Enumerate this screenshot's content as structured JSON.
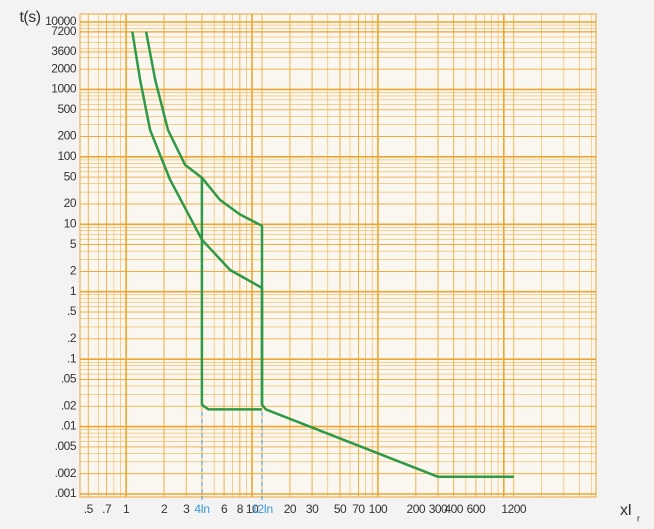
{
  "chart_data": {
    "type": "line",
    "y_label": "t(s)",
    "x_label": "xI",
    "x_label_sub": "r",
    "xlog": true,
    "ylog": true,
    "grid": true,
    "grid_color": "#eea630",
    "xlim": [
      0.43,
      5400
    ],
    "ylim": [
      0.001,
      10000
    ],
    "yticks": [
      10000,
      7200,
      3600,
      2000,
      1000,
      500,
      200,
      100,
      50,
      20,
      10,
      5,
      2,
      1,
      {
        "value": 0.5,
        "label": ".5"
      },
      {
        "value": 0.2,
        "label": ".2"
      },
      {
        "value": 0.1,
        "label": ".1"
      },
      {
        "value": 0.05,
        "label": ".05"
      },
      {
        "value": 0.02,
        "label": ".02"
      },
      {
        "value": 0.01,
        "label": ".01"
      },
      {
        "value": 0.005,
        "label": ".005"
      },
      {
        "value": 0.002,
        "label": ".002"
      },
      {
        "value": 0.001,
        "label": ".001"
      }
    ],
    "xticks": [
      {
        "value": 0.5,
        "label": ".5"
      },
      {
        "value": 0.7,
        "label": ".7"
      },
      1,
      2,
      3,
      {
        "value": 4,
        "label": "4In"
      },
      6,
      8,
      10,
      {
        "value": 12,
        "label": "12In"
      },
      20,
      30,
      50,
      70,
      100,
      200,
      300,
      400,
      600,
      1200
    ],
    "markers": {
      "x": [
        4,
        12
      ],
      "color": "#3a9ad9"
    },
    "series": [
      {
        "color": "#2e9a48",
        "x": [
          1.12,
          1.29,
          1.55,
          2.23,
          4,
          6.7,
          12,
          12,
          12.9,
          300,
          1200
        ],
        "values": [
          7200,
          1390,
          250,
          46,
          5.9,
          2.1,
          1.14,
          0.021,
          0.018,
          0.0018,
          0.0018
        ]
      },
      {
        "color": "#2e9a48",
        "x": [
          1.44,
          1.7,
          2.15,
          2.94,
          4,
          4,
          4.5,
          12
        ],
        "values": [
          7200,
          1390,
          250,
          76,
          49,
          0.021,
          0.018,
          0.018
        ]
      },
      {
        "color": "#2e9a48",
        "x": [
          4,
          5.57,
          8,
          12,
          12
        ],
        "values": [
          49,
          23,
          14,
          9.5,
          0.021
        ]
      }
    ]
  }
}
